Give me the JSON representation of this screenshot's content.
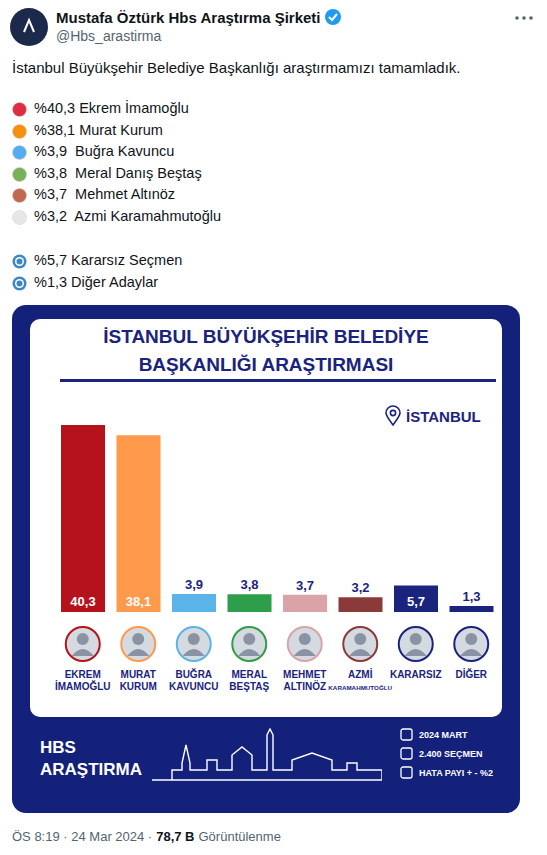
{
  "header": {
    "name": "Mustafa Öztürk Hbs Araştırma Şirketi",
    "handle": "@Hbs_arastirma"
  },
  "text": "İstanbul Büyükşehir Belediye Başkanlığı araştırmamızı tamamladık.",
  "results": [
    {
      "text": "%40,3 Ekrem İmamoğlu",
      "color": "#dd2e44"
    },
    {
      "text": "%38,1 Murat Kurum",
      "color": "#f4900c"
    },
    {
      "text": "%3,9  Buğra Kavuncu",
      "color": "#55acee"
    },
    {
      "text": "%3,8  Meral Danış Beştaş",
      "color": "#78b159"
    },
    {
      "text": "%3,7  Mehmet Altınöz",
      "color": "#c1694f"
    },
    {
      "text": "%3,2  Azmi Karamahmutoğlu",
      "color": "#e6e7e8"
    }
  ],
  "extras": [
    {
      "text": "%5,7 Kararsız Seçmen",
      "color": "#3b88c3"
    },
    {
      "text": "%1,3 Diğer Adaylar",
      "color": "#3b88c3"
    }
  ],
  "image": {
    "location": "İSTANBUL",
    "brand": [
      "HBS",
      "ARAŞTIRMA"
    ],
    "info": [
      "2024 MART",
      "2.400 SEÇMEN",
      "HATA PAYI + - %2"
    ]
  },
  "footer": {
    "time": "ÖS 8:19 · 24 Mar 2024 ·",
    "views": "78,7 B",
    "views_label": "Görüntülenme"
  },
  "chart_data": {
    "type": "bar",
    "title": "İSTANBUL BÜYÜKŞEHİR BELEDİYE BAŞKANLIĞI ARAŞTIRMASI",
    "categories": [
      "EKREM İMAMOĞLU",
      "MURAT KURUM",
      "BUĞRA KAVUNCU",
      "MERAL BEŞTAŞ",
      "MEHMET ALTINÖZ",
      "AZMİ KARAMAHMUTOĞLU",
      "KARARSIZ",
      "DİĞER"
    ],
    "values": [
      40.3,
      38.1,
      3.9,
      3.8,
      3.7,
      3.2,
      5.7,
      1.3
    ],
    "value_labels": [
      "40,3",
      "38,1",
      "3,9",
      "3,8",
      "3,7",
      "3,2",
      "5,7",
      "1,3"
    ],
    "colors": [
      "#b5121b",
      "#ff9a4d",
      "#5ab4e8",
      "#2e9e4a",
      "#d9a3a8",
      "#8b3a3a",
      "#1a237e",
      "#1a237e"
    ],
    "ylim": [
      0,
      40.3
    ],
    "grid": false,
    "data_labels": true,
    "tick_labels": "x"
  }
}
